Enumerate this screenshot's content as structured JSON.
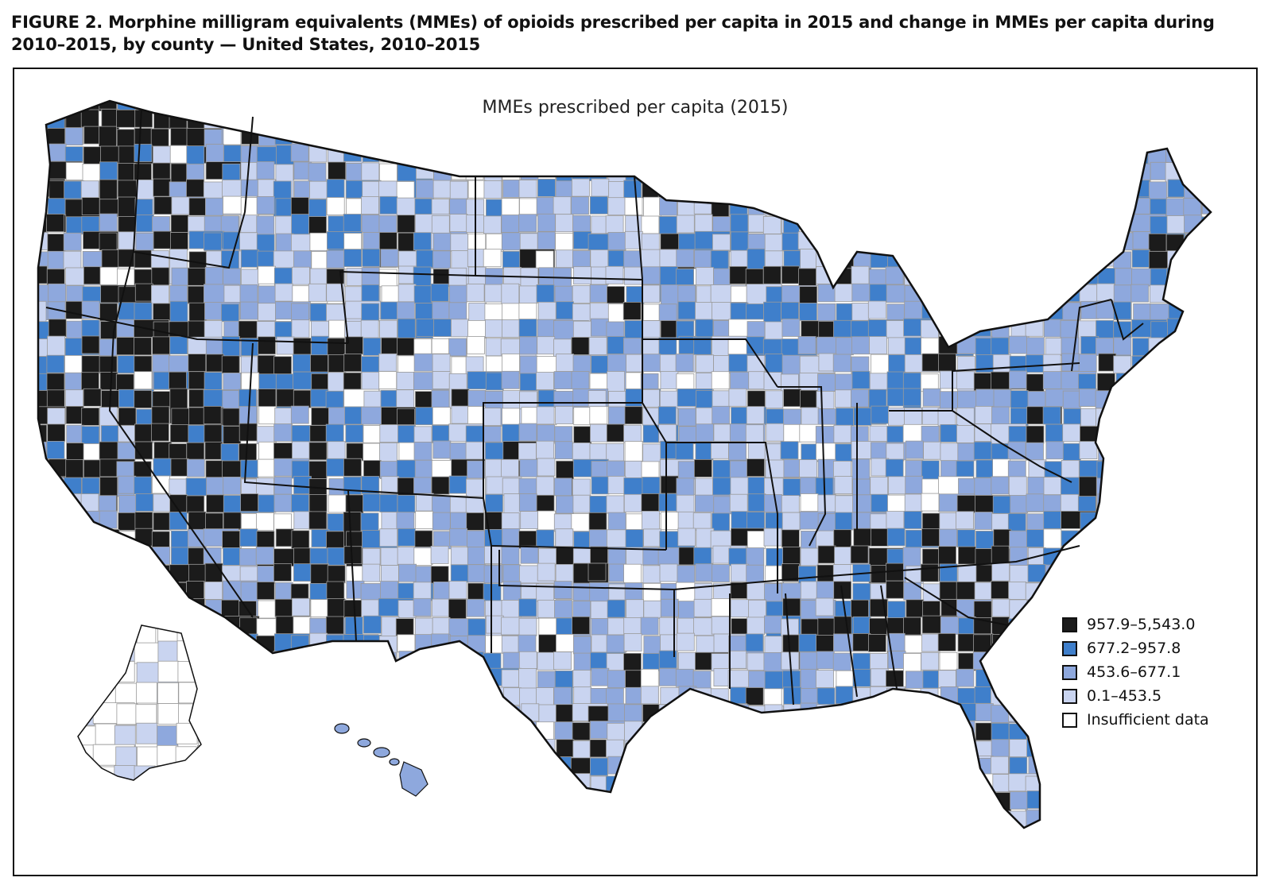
{
  "figure": {
    "title": "FIGURE 2. Morphine milligram equivalents (MMEs) of opioids prescribed per capita in 2015 and change in MMEs per capita during 2010–2015, by county — United States, 2010–2015"
  },
  "map": {
    "title": "MMEs prescribed per capita (2015)",
    "border_color": "#111111",
    "county_line_color": "#9a9a9a"
  },
  "legend": {
    "items": [
      {
        "label": "957.9–5,543.0",
        "color": "#1b1b1b"
      },
      {
        "label": "677.2–957.8",
        "color": "#3f7fcb"
      },
      {
        "label": "453.6–677.1",
        "color": "#8ea8dd"
      },
      {
        "label": "0.1–453.5",
        "color": "#c9d4f0"
      },
      {
        "label": "Insufficient data",
        "color": "#ffffff"
      }
    ]
  }
}
